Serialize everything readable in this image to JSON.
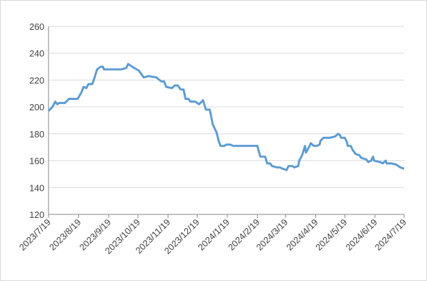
{
  "chart_data": {
    "type": "line",
    "x": [
      "2023-07-19",
      "2023-07-23",
      "2023-07-26",
      "2023-07-28",
      "2023-07-30",
      "2023-08-05",
      "2023-08-09",
      "2023-08-18",
      "2023-08-22",
      "2023-08-24",
      "2023-08-27",
      "2023-08-29",
      "2023-09-02",
      "2023-09-04",
      "2023-09-07",
      "2023-09-11",
      "2023-09-13",
      "2023-09-14",
      "2023-09-21",
      "2023-10-02",
      "2023-10-07",
      "2023-10-09",
      "2023-10-13",
      "2023-10-20",
      "2023-10-23",
      "2023-10-25",
      "2023-10-30",
      "2023-11-07",
      "2023-11-12",
      "2023-11-15",
      "2023-11-17",
      "2023-11-23",
      "2023-11-26",
      "2023-11-29",
      "2023-12-02",
      "2023-12-05",
      "2023-12-07",
      "2023-12-10",
      "2023-12-12",
      "2023-12-17",
      "2023-12-21",
      "2023-12-25",
      "2023-12-28",
      "2024-01-01",
      "2024-01-04",
      "2024-01-08",
      "2024-01-10",
      "2024-01-12",
      "2024-01-16",
      "2024-01-18",
      "2024-01-22",
      "2024-01-25",
      "2024-02-19",
      "2024-02-20",
      "2024-02-22",
      "2024-02-27",
      "2024-02-29",
      "2024-03-03",
      "2024-03-05",
      "2024-03-10",
      "2024-03-13",
      "2024-03-16",
      "2024-03-20",
      "2024-03-22",
      "2024-03-26",
      "2024-03-28",
      "2024-04-01",
      "2024-04-02",
      "2024-04-05",
      "2024-04-08",
      "2024-04-09",
      "2024-04-12",
      "2024-04-14",
      "2024-04-17",
      "2024-04-20",
      "2024-04-23",
      "2024-04-24",
      "2024-04-27",
      "2024-05-03",
      "2024-05-09",
      "2024-05-12",
      "2024-05-14",
      "2024-05-15",
      "2024-05-19",
      "2024-05-21",
      "2024-05-22",
      "2024-05-25",
      "2024-05-27",
      "2024-05-30",
      "2024-06-03",
      "2024-06-05",
      "2024-06-10",
      "2024-06-12",
      "2024-06-15",
      "2024-06-17",
      "2024-06-18",
      "2024-06-24",
      "2024-06-27",
      "2024-06-30",
      "2024-07-01",
      "2024-07-06",
      "2024-07-11",
      "2024-07-15",
      "2024-07-19"
    ],
    "series": [
      {
        "color": "#5b9bd5",
        "values": [
          197,
          200,
          204,
          202,
          203,
          203,
          206,
          206,
          211,
          215,
          214,
          217,
          217,
          221,
          228,
          230,
          230,
          228,
          228,
          228,
          229,
          232,
          230,
          227,
          224,
          222,
          223,
          222,
          219,
          219,
          215,
          214,
          216,
          216,
          213,
          213,
          206,
          206,
          204,
          204,
          202,
          205,
          198,
          198,
          187,
          181,
          175,
          171,
          171,
          172,
          172,
          171,
          171,
          168,
          163,
          163,
          158,
          158,
          156,
          155,
          155,
          154,
          153,
          156,
          156,
          155,
          156,
          160,
          164,
          171,
          166,
          170,
          173,
          171,
          171,
          172,
          175,
          177,
          177,
          178,
          180,
          179,
          177,
          177,
          174,
          171,
          171,
          168,
          165,
          164,
          162,
          161,
          159,
          160,
          163,
          160,
          159,
          158,
          160,
          158,
          158,
          157,
          155,
          154
        ]
      }
    ],
    "xlim": [
      "2023-07-19",
      "2024-07-19"
    ],
    "xticks": [
      {
        "value": "2023-07-19",
        "label": "2023/7/19"
      },
      {
        "value": "2023-08-19",
        "label": "2023/8/19"
      },
      {
        "value": "2023-09-19",
        "label": "2023/9/19"
      },
      {
        "value": "2023-10-19",
        "label": "2023/10/19"
      },
      {
        "value": "2023-11-19",
        "label": "2023/11/19"
      },
      {
        "value": "2023-12-19",
        "label": "2023/12/19"
      },
      {
        "value": "2024-01-19",
        "label": "2024/1/19"
      },
      {
        "value": "2024-02-19",
        "label": "2024/2/19"
      },
      {
        "value": "2024-03-19",
        "label": "2024/3/19"
      },
      {
        "value": "2024-04-19",
        "label": "2024/4/19"
      },
      {
        "value": "2024-05-19",
        "label": "2024/5/19"
      },
      {
        "value": "2024-06-19",
        "label": "2024/6/19"
      },
      {
        "value": "2024-07-19",
        "label": "2024/7/19"
      }
    ],
    "ylim": [
      120,
      260
    ],
    "yticks": [
      120,
      140,
      160,
      180,
      200,
      220,
      240,
      260
    ],
    "grid": true
  }
}
